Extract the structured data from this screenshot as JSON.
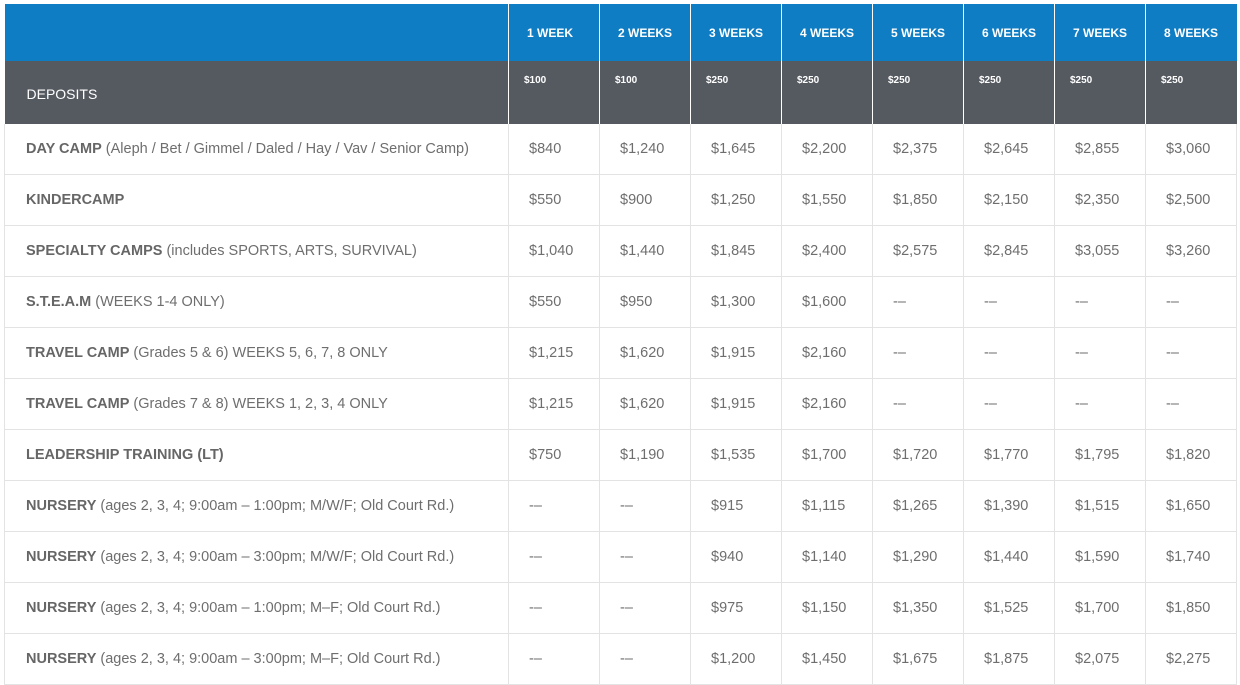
{
  "header": {
    "columns": [
      "1 WEEK",
      "2 WEEKS",
      "3 WEEKS",
      "4 WEEKS",
      "5 WEEKS",
      "6 WEEKS",
      "7 WEEKS",
      "8 WEEKS"
    ]
  },
  "deposits": {
    "label": "DEPOSITS",
    "values": [
      "$100",
      "$100",
      "$250",
      "$250",
      "$250",
      "$250",
      "$250",
      "$250"
    ]
  },
  "rows": [
    {
      "name": "DAY CAMP",
      "desc": " (Aleph / Bet / Gimmel / Daled / Hay / Vav / Senior Camp)",
      "prices": [
        "$840",
        "$1,240",
        "$1,645",
        "$2,200",
        "$2,375",
        "$2,645",
        "$2,855",
        "$3,060"
      ]
    },
    {
      "name": "KINDERCAMP",
      "desc": "",
      "prices": [
        "$550",
        "$900",
        "$1,250",
        "$1,550",
        "$1,850",
        "$2,150",
        "$2,350",
        "$2,500"
      ]
    },
    {
      "name": "SPECIALTY CAMPS",
      "desc": " (includes SPORTS, ARTS, SURVIVAL)",
      "prices": [
        "$1,040",
        "$1,440",
        "$1,845",
        "$2,400",
        "$2,575",
        "$2,845",
        "$3,055",
        "$3,260"
      ]
    },
    {
      "name": "S.T.E.A.M",
      "desc": " (WEEKS 1-4 ONLY)",
      "prices": [
        "$550",
        "$950",
        "$1,300",
        "$1,600",
        "-–",
        "-–",
        "-–",
        "-–"
      ]
    },
    {
      "name": "TRAVEL CAMP",
      "desc": " (Grades 5 & 6) WEEKS 5, 6, 7, 8 ONLY",
      "prices": [
        "$1,215",
        "$1,620",
        "$1,915",
        "$2,160",
        "-–",
        "-–",
        "-–",
        "-–"
      ]
    },
    {
      "name": "TRAVEL CAMP",
      "desc": " (Grades 7 & 8) WEEKS 1, 2, 3, 4 ONLY",
      "prices": [
        "$1,215",
        "$1,620",
        "$1,915",
        "$2,160",
        "-–",
        "-–",
        "-–",
        "-–"
      ]
    },
    {
      "name": "LEADERSHIP TRAINING (LT)",
      "desc": "",
      "prices": [
        "$750",
        "$1,190",
        "$1,535",
        "$1,700",
        "$1,720",
        "$1,770",
        "$1,795",
        "$1,820"
      ]
    },
    {
      "name": "NURSERY",
      "desc": " (ages 2, 3, 4; 9:00am – 1:00pm; M/W/F; Old Court Rd.)",
      "prices": [
        "-–",
        "-–",
        "$915",
        "$1,115",
        "$1,265",
        "$1,390",
        "$1,515",
        "$1,650"
      ]
    },
    {
      "name": "NURSERY",
      "desc": " (ages 2, 3, 4; 9:00am – 3:00pm; M/W/F; Old Court Rd.)",
      "prices": [
        "-–",
        "-–",
        "$940",
        "$1,140",
        "$1,290",
        "$1,440",
        "$1,590",
        "$1,740"
      ]
    },
    {
      "name": "NURSERY",
      "desc": " (ages 2, 3, 4; 9:00am – 1:00pm; M–F; Old Court Rd.)",
      "prices": [
        "-–",
        "-–",
        "$975",
        "$1,150",
        "$1,350",
        "$1,525",
        "$1,700",
        "$1,850"
      ]
    },
    {
      "name": "NURSERY",
      "desc": " (ages 2, 3, 4; 9:00am – 3:00pm; M–F; Old Court Rd.)",
      "prices": [
        "-–",
        "-–",
        "$1,200",
        "$1,450",
        "$1,675",
        "$1,875",
        "$2,075",
        "$2,275"
      ]
    }
  ]
}
